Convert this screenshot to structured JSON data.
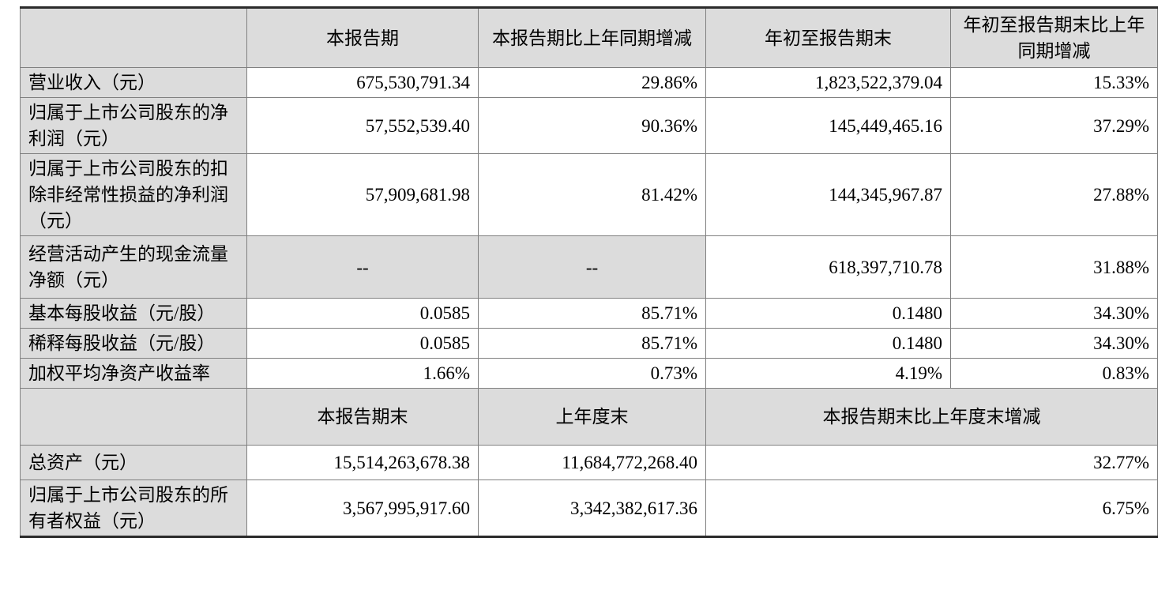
{
  "colors": {
    "cell_shade_bg": "#dcdcdc",
    "grid_line": "#808080",
    "outer_border": "#2b2b2b",
    "text": "#000000"
  },
  "table": {
    "section1": {
      "headers": {
        "corner": "",
        "col1": "本报告期",
        "col2": "本报告期比上年同期增减",
        "col3": "年初至报告期末",
        "col4": "年初至报告期末比上年同期增减"
      },
      "rows": [
        {
          "label": "营业收入（元）",
          "values": [
            "675,530,791.34",
            "29.86%",
            "1,823,522,379.04",
            "15.33%"
          ]
        },
        {
          "label": "归属于上市公司股东的净利润（元）",
          "values": [
            "57,552,539.40",
            "90.36%",
            "145,449,465.16",
            "37.29%"
          ]
        },
        {
          "label": "归属于上市公司股东的扣除非经常性损益的净利润（元）",
          "values": [
            "57,909,681.98",
            "81.42%",
            "144,345,967.87",
            "27.88%"
          ]
        },
        {
          "label": "经营活动产生的现金流量净额（元）",
          "values": [
            "--",
            "--",
            "618,397,710.78",
            "31.88%"
          ]
        },
        {
          "label": "基本每股收益（元/股）",
          "values": [
            "0.0585",
            "85.71%",
            "0.1480",
            "34.30%"
          ]
        },
        {
          "label": "稀释每股收益（元/股）",
          "values": [
            "0.0585",
            "85.71%",
            "0.1480",
            "34.30%"
          ]
        },
        {
          "label": "加权平均净资产收益率",
          "values": [
            "1.66%",
            "0.73%",
            "4.19%",
            "0.83%"
          ]
        }
      ]
    },
    "section2": {
      "headers": {
        "corner": "",
        "col1": "本报告期末",
        "col2": "上年度末",
        "col3": "本报告期末比上年度末增减"
      },
      "rows": [
        {
          "label": "总资产（元）",
          "values": [
            "15,514,263,678.38",
            "11,684,772,268.40",
            "32.77%"
          ]
        },
        {
          "label": "归属于上市公司股东的所有者权益（元）",
          "values": [
            "3,567,995,917.60",
            "3,342,382,617.36",
            "6.75%"
          ]
        }
      ]
    }
  }
}
